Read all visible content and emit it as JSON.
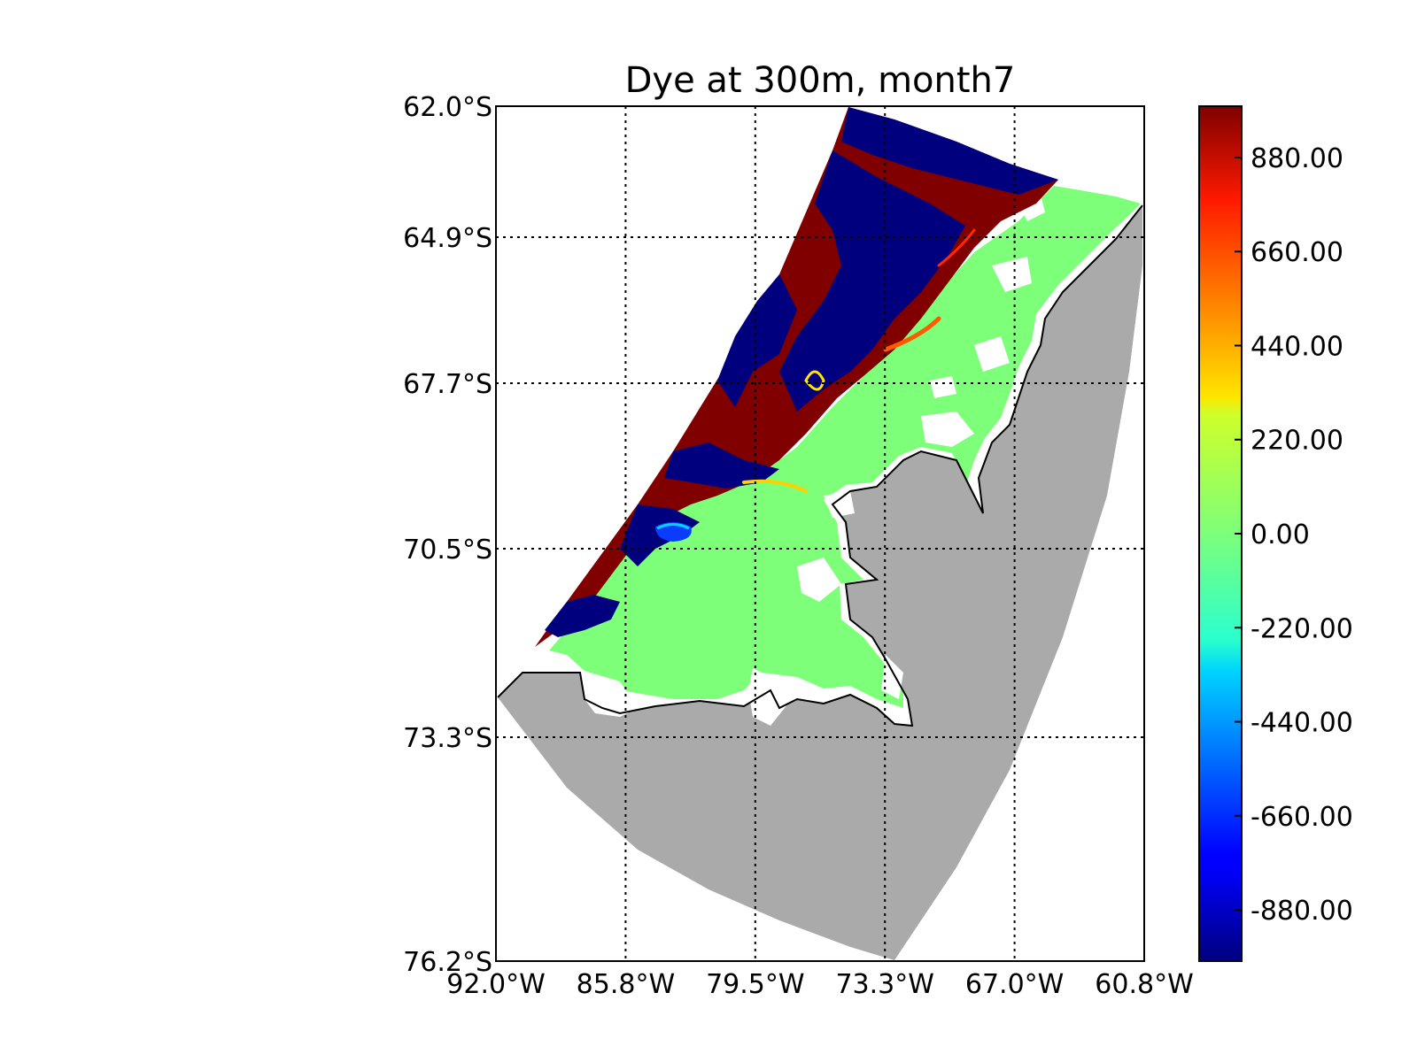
{
  "chart_data": {
    "type": "heatmap",
    "title": "Dye at 300m, month7",
    "xlabel": "",
    "ylabel": "",
    "x_ticks": [
      "92.0°W",
      "85.8°W",
      "79.5°W",
      "73.3°W",
      "67.0°W",
      "60.8°W"
    ],
    "y_ticks": [
      "62.0°S",
      "64.9°S",
      "67.7°S",
      "70.5°S",
      "73.3°S",
      "76.2°S"
    ],
    "x_range_deg_w": [
      92.0,
      60.8
    ],
    "y_range_deg_s": [
      62.0,
      76.2
    ],
    "grid": "on (dotted)",
    "colormap": "jet",
    "colorbar": {
      "placement": "right",
      "range": [
        -1000,
        1000
      ],
      "tick_labels": [
        "880.00",
        "660.00",
        "440.00",
        "220.00",
        "0.00",
        "-220.00",
        "-440.00",
        "-660.00",
        "-880.00"
      ],
      "tick_values": [
        880,
        660,
        440,
        220,
        0,
        -220,
        -440,
        -660,
        -880
      ]
    },
    "land_color": "#aaaaaa",
    "colors": {
      "high": "#800000",
      "low": "#00007f",
      "zero": "#7dff7a"
    }
  }
}
